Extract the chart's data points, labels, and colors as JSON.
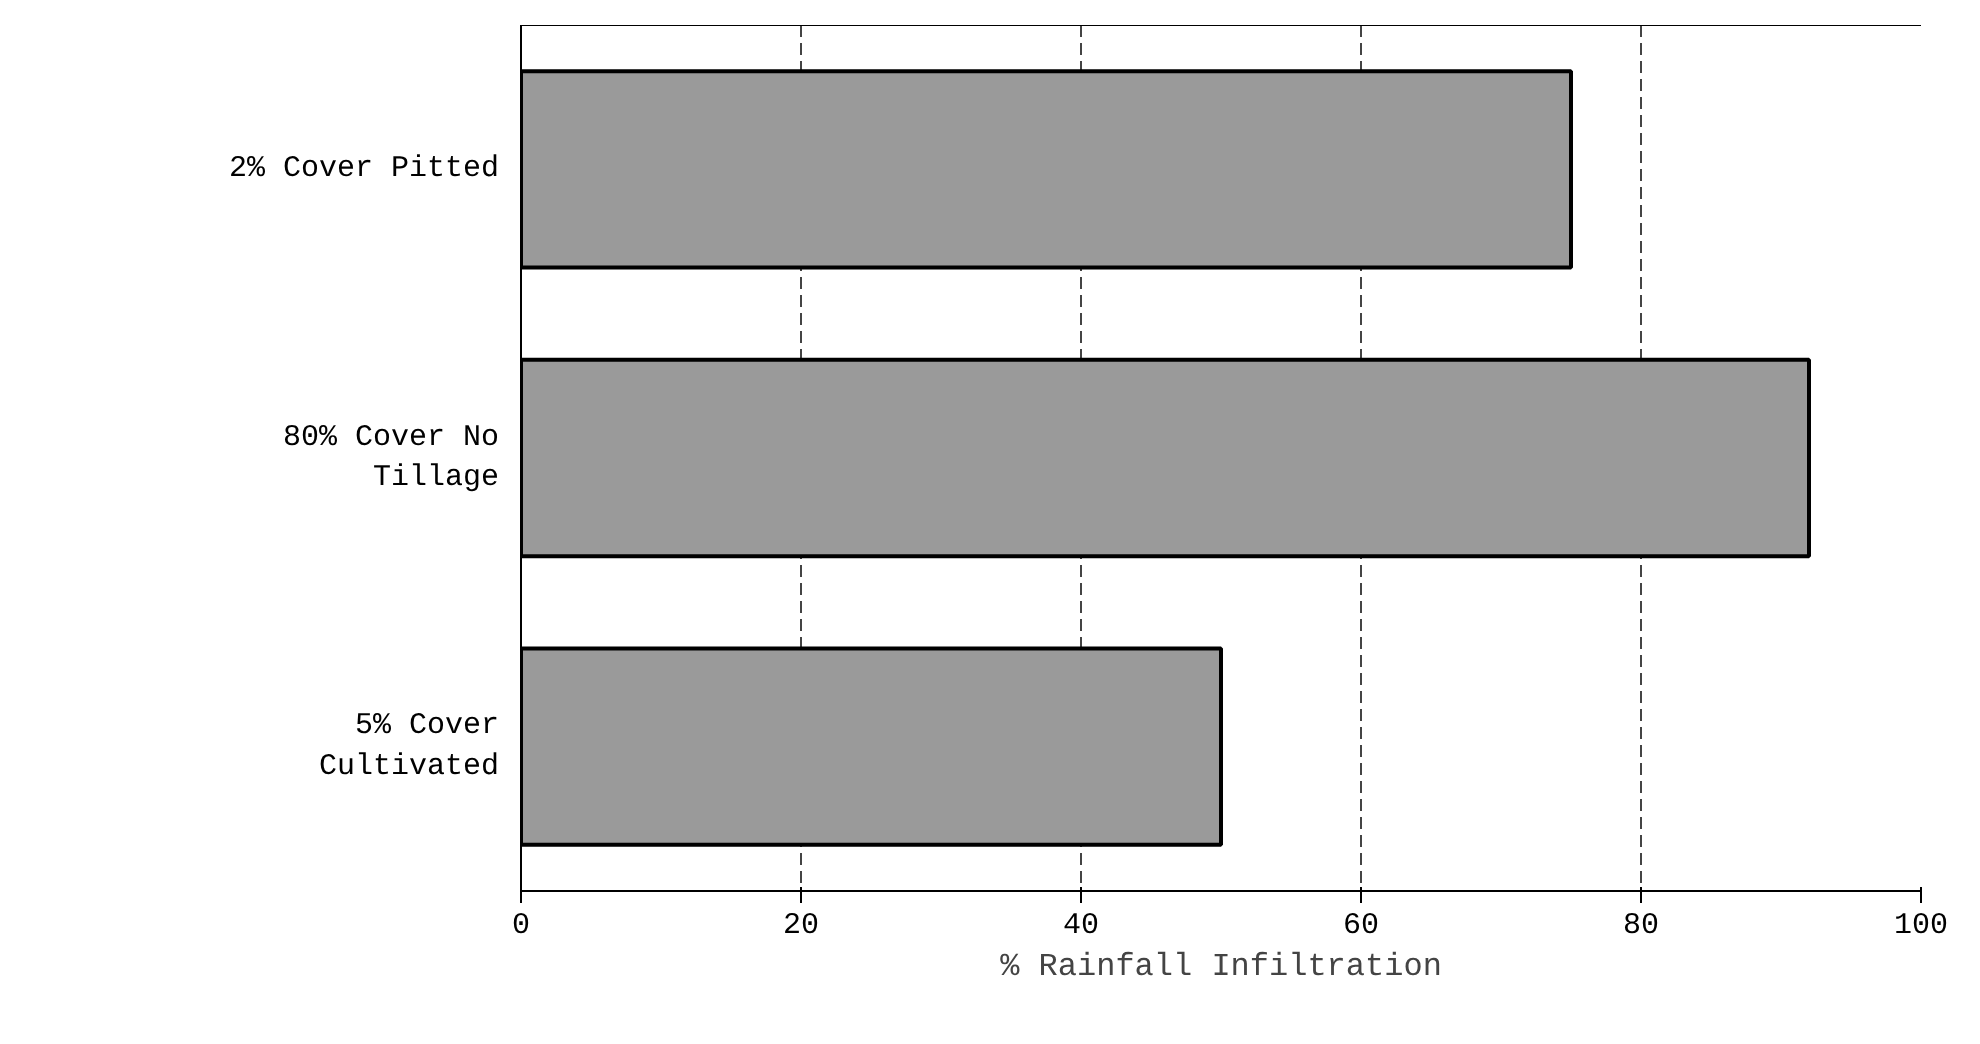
{
  "chart_data": {
    "type": "bar",
    "orientation": "horizontal",
    "xlabel": "% Rainfall Infiltration",
    "categories": [
      "2% Cover Pitted",
      "80% Cover No Tillage",
      "5% Cover Cultivated"
    ],
    "values": [
      75,
      92,
      50
    ],
    "color": "#9a9a9a",
    "xlim": [
      0,
      100
    ],
    "xticks": [
      0,
      20,
      40,
      60,
      80,
      100
    ],
    "grid": "x"
  }
}
